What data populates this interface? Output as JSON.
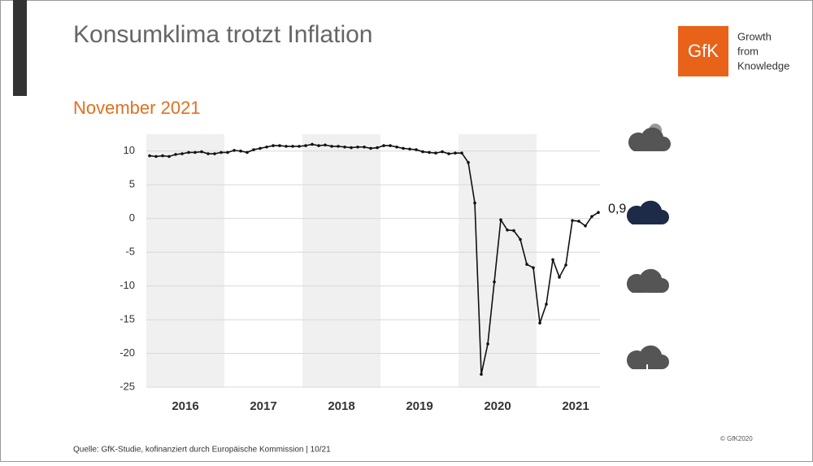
{
  "header": {
    "title": "Konsumklima trotzt Inflation",
    "logo": "GfK",
    "tagline": [
      "Growth",
      "from",
      "Knowledge"
    ]
  },
  "chart_data": {
    "type": "line",
    "title": "November 2021",
    "categories": [
      null,
      null,
      null,
      null,
      null,
      "2016",
      null,
      null,
      null,
      null,
      null,
      null,
      null,
      null,
      null,
      null,
      null,
      "2017",
      null,
      null,
      null,
      null,
      null,
      null,
      null,
      null,
      null,
      null,
      null,
      "2018",
      null,
      null,
      null,
      null,
      null,
      null,
      null,
      null,
      null,
      null,
      null,
      "2019",
      null,
      null,
      null,
      null,
      null,
      null,
      null,
      null,
      null,
      null,
      null,
      "2020",
      null,
      null,
      null,
      null,
      null,
      null,
      null,
      null,
      null,
      null,
      null,
      "2021",
      null,
      null,
      null,
      null
    ],
    "series": [
      {
        "name": "Konsumklima",
        "color": "#111111",
        "values": [
          9.3,
          9.2,
          9.3,
          9.2,
          9.5,
          9.6,
          9.8,
          9.8,
          9.9,
          9.6,
          9.6,
          9.8,
          9.8,
          10.1,
          10.0,
          9.8,
          10.2,
          10.4,
          10.6,
          10.8,
          10.8,
          10.7,
          10.7,
          10.7,
          10.8,
          11.0,
          10.8,
          10.9,
          10.7,
          10.7,
          10.6,
          10.5,
          10.6,
          10.6,
          10.4,
          10.5,
          10.8,
          10.8,
          10.6,
          10.4,
          10.3,
          10.2,
          9.9,
          9.8,
          9.7,
          9.9,
          9.6,
          9.7,
          9.7,
          8.3,
          2.3,
          -23.1,
          -18.6,
          -9.4,
          -0.2,
          -1.7,
          -1.8,
          -3.1,
          -6.8,
          -7.3,
          -15.5,
          -12.7,
          -6.1,
          -8.7,
          -6.9,
          -0.3,
          -0.4,
          -1.1,
          0.3,
          0.9
        ]
      }
    ],
    "last_value_label": "0,9",
    "ylim": [
      -25,
      12.5
    ],
    "yticks": [
      -25,
      -20,
      -15,
      -10,
      -5,
      0,
      5,
      10
    ],
    "grid": true,
    "source": "Quelle: GfK-Studie, kofinanziert durch Europäische Kommission | 10/21",
    "copyright": "© GfK2020"
  }
}
